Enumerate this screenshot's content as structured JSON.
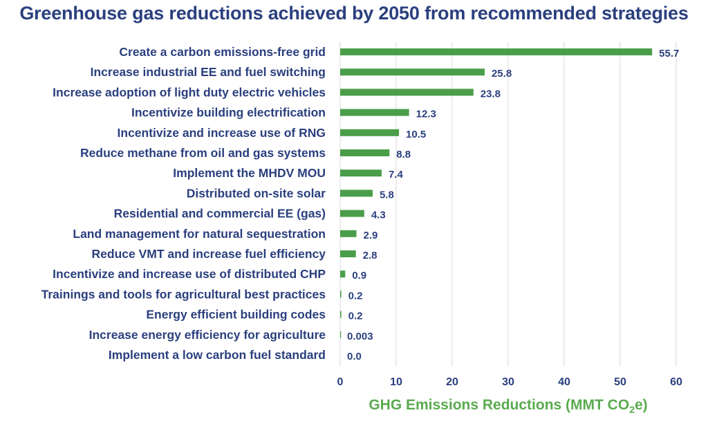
{
  "chart_data": {
    "type": "bar",
    "orientation": "horizontal",
    "title": "Greenhouse gas reductions achieved by 2050 from recommended strategies",
    "xlabel": {
      "prefix": "GHG Emissions Reductions (MMT CO",
      "sub": "2",
      "suffix": "e)"
    },
    "xlim": [
      0,
      60
    ],
    "xticks": [
      0,
      10,
      20,
      30,
      40,
      50,
      60
    ],
    "grid": "vertical",
    "bar_color": "#4a9e4a",
    "categories": [
      "Create a carbon emissions-free grid",
      "Increase industrial EE and fuel switching",
      "Increase adoption of light duty electric vehicles",
      "Incentivize building electrification",
      "Incentivize and increase use of RNG",
      "Reduce methane from oil and gas systems",
      "Implement the MHDV MOU",
      "Distributed on-site solar",
      "Residential and commercial EE (gas)",
      "Land management for natural sequestration",
      "Reduce VMT and increase fuel efficiency",
      "Incentivize and increase use of distributed CHP",
      "Trainings and tools for agricultural best practices",
      "Energy efficient building codes",
      "Increase energy efficiency for agriculture",
      "Implement a low carbon fuel standard"
    ],
    "values": [
      55.7,
      25.8,
      23.8,
      12.3,
      10.5,
      8.8,
      7.4,
      5.8,
      4.3,
      2.9,
      2.8,
      0.9,
      0.2,
      0.2,
      0.003,
      0.0
    ],
    "value_labels": [
      "55.7",
      "25.8",
      "23.8",
      "12.3",
      "10.5",
      "8.8",
      "7.4",
      "5.8",
      "4.3",
      "2.9",
      "2.8",
      "0.9",
      "0.2",
      "0.2",
      "0.003",
      "0.0"
    ]
  }
}
